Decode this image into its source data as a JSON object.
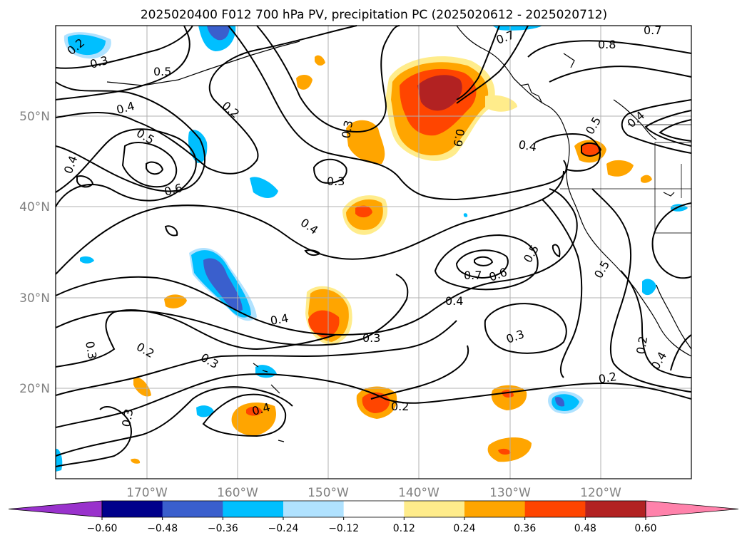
{
  "title": "2025020400 F012 700 hPa PV, precipitation PC (2025020612 - 2025020712)",
  "lon_labels": [
    "170°W",
    "160°W",
    "150°W",
    "140°W",
    "130°W",
    "120°W"
  ],
  "lat_labels": [
    "50°N",
    "40°N",
    "30°N",
    "20°N"
  ],
  "colorbar": {
    "ticks": [
      "−0.60",
      "−0.48",
      "−0.36",
      "−0.24",
      "−0.12",
      "0.12",
      "0.24",
      "0.36",
      "0.48",
      "0.60"
    ],
    "colors": [
      "#9932cc",
      "#00008b",
      "#3a5fcd",
      "#00bfff",
      "#b0e2ff",
      "#ffffff",
      "#ffec8b",
      "#ffa500",
      "#ff4500",
      "#b22222",
      "#ff82ab"
    ]
  },
  "contour_labels": [
    "0.2",
    "0.3",
    "0.5",
    "0.4",
    "0.5",
    "0.6",
    "0.4",
    "0.2",
    "0.3",
    "0.3",
    "0.4",
    "0.9",
    "0.7",
    "0.8",
    "0.7",
    "0.4",
    "0.5",
    "0.4",
    "0.7",
    "0.6",
    "0.5",
    "0.4",
    "0.5",
    "0.4",
    "0.3",
    "0.3",
    "0.2",
    "0.3",
    "0.3",
    "0.4",
    "0.2",
    "0.3",
    "0.4",
    "0.2",
    "0.2"
  ]
}
